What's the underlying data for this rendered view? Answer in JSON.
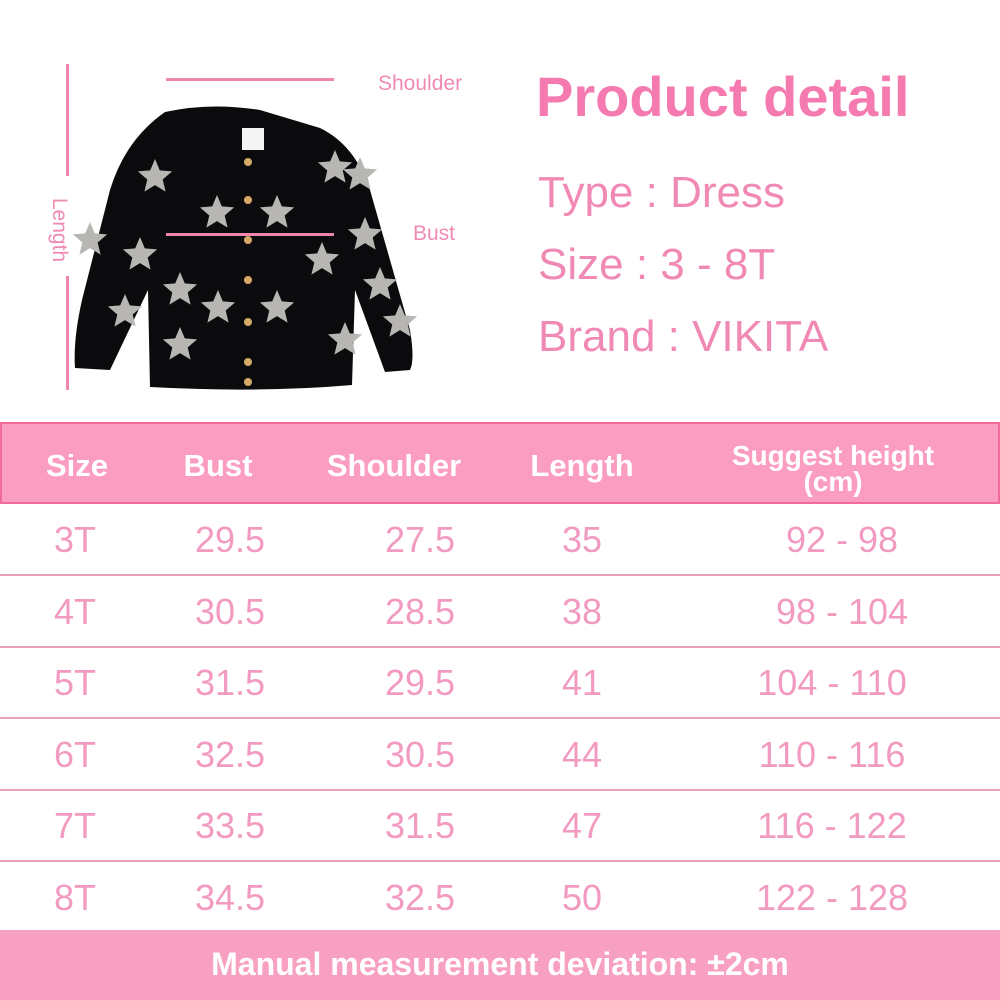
{
  "measure_labels": {
    "shoulder": "Shoulder",
    "bust": "Bust",
    "length": "Length"
  },
  "product": {
    "title": "Product detail",
    "type": "Type : Dress",
    "size": "Size : 3 - 8T",
    "brand": "Brand : VIKITA"
  },
  "table": {
    "headers": [
      "Size",
      "Bust",
      "Shoulder",
      "Length",
      "Suggest height",
      "(cm)"
    ],
    "rows": [
      [
        "3T",
        "29.5",
        "27.5",
        "35",
        "92 - 98"
      ],
      [
        "4T",
        "30.5",
        "28.5",
        "38",
        "98 - 104"
      ],
      [
        "5T",
        "31.5",
        "29.5",
        "41",
        "104 - 110"
      ],
      [
        "6T",
        "32.5",
        "30.5",
        "44",
        "110 - 116"
      ],
      [
        "7T",
        "33.5",
        "31.5",
        "47",
        "116 - 122"
      ],
      [
        "8T",
        "34.5",
        "32.5",
        "50",
        "122 - 128"
      ]
    ]
  },
  "footer": "Manual measurement deviation: ±2cm",
  "colors": {
    "pink_header": "#fa9dc1",
    "pink_text": "#f29ac0",
    "title": "#f47ab0"
  }
}
